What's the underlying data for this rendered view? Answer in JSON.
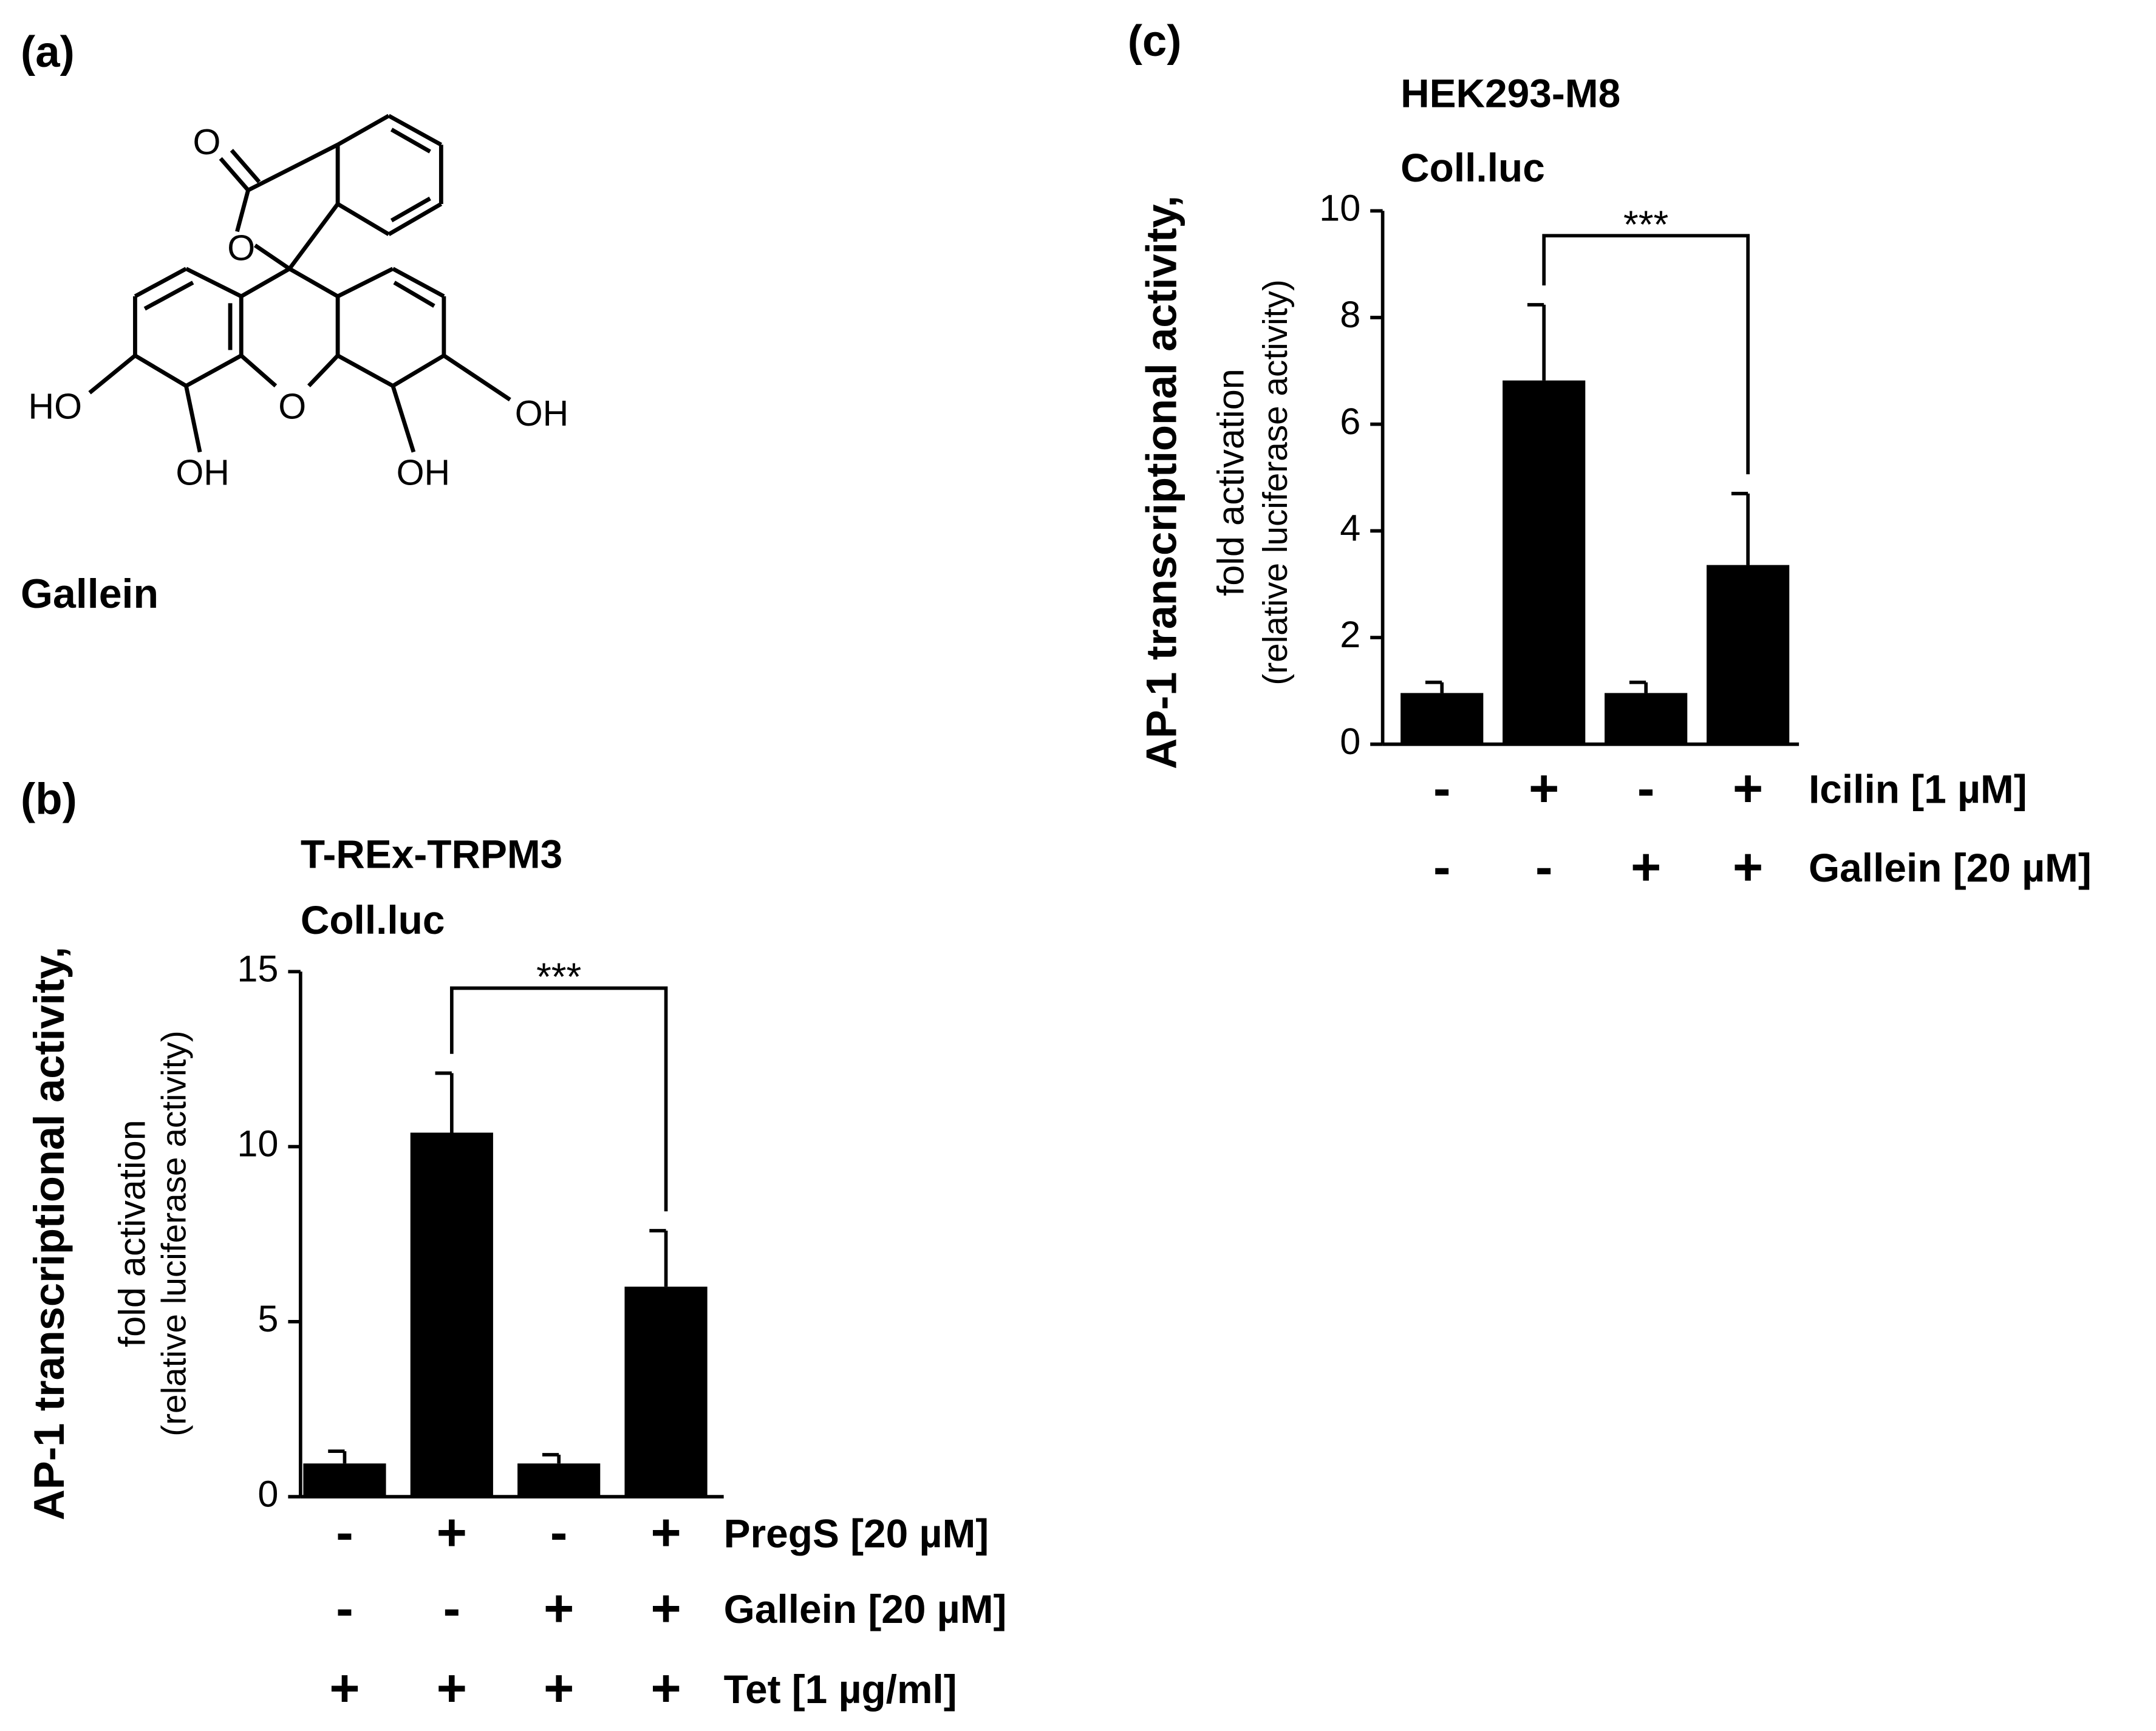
{
  "structure": {
    "panel": "(a)",
    "name": "Gallein",
    "atoms": [
      "O",
      "O",
      "HO",
      "O",
      "OH",
      "OH",
      "OH"
    ]
  },
  "chart_data": [
    {
      "type": "bar",
      "panel": "(b)",
      "title": [
        "T-REx-TRPM3",
        "Coll.luc"
      ],
      "ylabel": [
        "AP-1 transcriptional activity,",
        "fold activation",
        "(relative luciferase activity)"
      ],
      "values": [
        0.95,
        10.4,
        0.95,
        6.0
      ],
      "errors": [
        0.35,
        1.7,
        0.25,
        1.6
      ],
      "color": "#000000",
      "ylim": [
        0,
        15
      ],
      "yticks": [
        0,
        5,
        10,
        15
      ],
      "treatments": [
        {
          "label": "PregS [20 µM]",
          "signs": [
            "-",
            "+",
            "-",
            "+"
          ]
        },
        {
          "label": "Gallein [20 µM]",
          "signs": [
            "-",
            "-",
            "+",
            "+"
          ]
        },
        {
          "label": "Tet [1 µg/ml]",
          "signs": [
            "+",
            "+",
            "+",
            "+"
          ]
        }
      ],
      "significance": {
        "from": 1,
        "to": 3,
        "label": "***"
      }
    },
    {
      "type": "bar",
      "panel": "(c)",
      "title": [
        "HEK293-M8",
        "Coll.luc"
      ],
      "ylabel": [
        "AP-1 transcriptional activity,",
        "fold activation",
        "(relative luciferase activity)"
      ],
      "values": [
        0.96,
        6.82,
        0.96,
        3.36
      ],
      "errors": [
        0.2,
        1.42,
        0.2,
        1.34
      ],
      "color": "#000000",
      "ylim": [
        0,
        10
      ],
      "yticks": [
        0,
        2,
        4,
        6,
        8,
        10
      ],
      "treatments": [
        {
          "label": "Icilin [1 µM]",
          "signs": [
            "-",
            "+",
            "-",
            "+"
          ]
        },
        {
          "label": "Gallein [20 µM]",
          "signs": [
            "-",
            "-",
            "+",
            "+"
          ]
        }
      ],
      "significance": {
        "from": 1,
        "to": 3,
        "label": "***"
      }
    }
  ]
}
